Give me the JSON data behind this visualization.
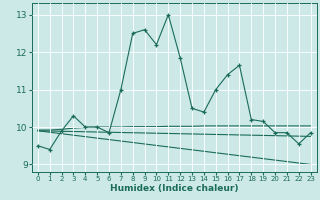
{
  "title": "",
  "xlabel": "Humidex (Indice chaleur)",
  "xlim": [
    -0.5,
    23.5
  ],
  "ylim": [
    8.8,
    13.3
  ],
  "xticks": [
    0,
    1,
    2,
    3,
    4,
    5,
    6,
    7,
    8,
    9,
    10,
    11,
    12,
    13,
    14,
    15,
    16,
    17,
    18,
    19,
    20,
    21,
    22,
    23
  ],
  "yticks": [
    9,
    10,
    11,
    12,
    13
  ],
  "bg_color": "#cce9e8",
  "line_color": "#1a6b5a",
  "grid_color": "#ffffff",
  "series": [
    {
      "x": [
        0,
        1,
        2,
        3,
        4,
        5,
        6,
        7,
        8,
        9,
        10,
        11,
        12,
        13,
        14,
        15,
        16,
        17,
        18,
        19,
        20,
        21,
        22,
        23
      ],
      "y": [
        9.5,
        9.4,
        9.9,
        10.3,
        10.0,
        10.0,
        9.85,
        11.0,
        12.5,
        12.6,
        12.2,
        13.0,
        11.85,
        10.5,
        10.4,
        11.0,
        11.4,
        11.65,
        10.2,
        10.15,
        9.85,
        9.85,
        9.55,
        9.85
      ],
      "marker": "+"
    },
    {
      "x": [
        0,
        1,
        2,
        3,
        4,
        5,
        6,
        7,
        8,
        9,
        10,
        11,
        12,
        13,
        14,
        15,
        16,
        17,
        18,
        19,
        20,
        21,
        22,
        23
      ],
      "y": [
        9.92,
        9.92,
        9.94,
        9.97,
        9.99,
        10.0,
        10.0,
        10.0,
        10.01,
        10.01,
        10.01,
        10.02,
        10.02,
        10.02,
        10.03,
        10.03,
        10.03,
        10.03,
        10.03,
        10.03,
        10.03,
        10.03,
        10.03,
        10.03
      ],
      "marker": null
    },
    {
      "x": [
        0,
        23
      ],
      "y": [
        9.9,
        9.75
      ],
      "marker": null
    },
    {
      "x": [
        0,
        23
      ],
      "y": [
        9.9,
        9.0
      ],
      "marker": null
    }
  ]
}
